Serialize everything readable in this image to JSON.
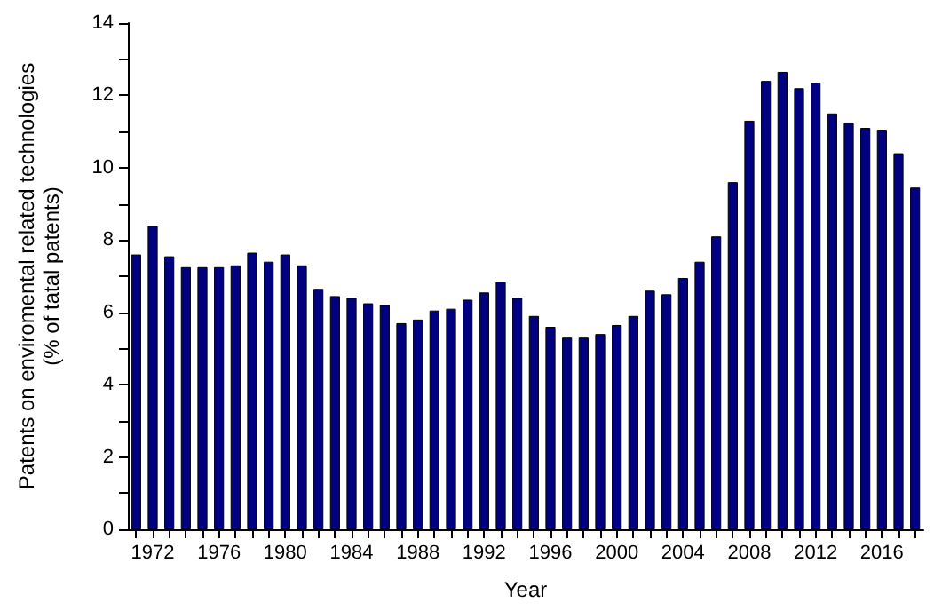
{
  "chart_data": {
    "type": "bar",
    "xlabel": "Year",
    "ylabel": "Patents on enviromental related technologies\n(% of tatal patents)",
    "categories": [
      null,
      "1972",
      null,
      null,
      null,
      "1976",
      null,
      null,
      null,
      "1980",
      null,
      null,
      null,
      "1984",
      null,
      null,
      null,
      "1988",
      null,
      null,
      null,
      "1992",
      null,
      null,
      null,
      "1996",
      null,
      null,
      null,
      "2000",
      null,
      null,
      null,
      "2004",
      null,
      null,
      null,
      "2008",
      null,
      null,
      null,
      "2012",
      null,
      null,
      null,
      "2016",
      null,
      null
    ],
    "values": [
      7.6,
      8.4,
      7.55,
      7.25,
      7.25,
      7.25,
      7.3,
      7.65,
      7.4,
      7.6,
      7.3,
      6.65,
      6.45,
      6.4,
      6.25,
      6.2,
      5.7,
      5.8,
      6.05,
      6.1,
      6.35,
      6.55,
      6.85,
      6.4,
      5.9,
      5.6,
      5.3,
      5.3,
      5.4,
      5.65,
      5.9,
      6.6,
      6.5,
      6.95,
      7.4,
      8.1,
      9.6,
      11.3,
      12.4,
      12.65,
      12.2,
      12.35,
      11.5,
      11.25,
      11.1,
      11.05,
      10.4,
      9.45
    ],
    "color": "#000080",
    "ylim": [
      0,
      14
    ],
    "yticks": [
      0,
      {
        "value": 1,
        "label": null
      },
      2,
      {
        "value": 3,
        "label": null
      },
      4,
      {
        "value": 5,
        "label": null
      },
      6,
      {
        "value": 7,
        "label": null
      },
      8,
      {
        "value": 9,
        "label": null
      },
      10,
      {
        "value": 11,
        "label": null
      },
      12,
      {
        "value": 13,
        "label": null
      },
      14
    ],
    "grid": false
  }
}
